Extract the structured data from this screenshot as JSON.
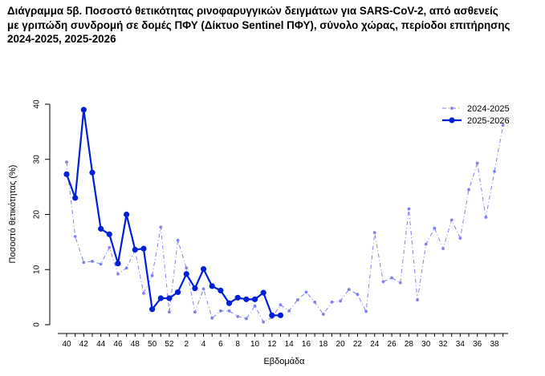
{
  "chart_data": {
    "type": "line",
    "title_lines": [
      "Διάγραμμα 5β. Ποσοστό θετικότητας ρινοφαρυγγικών δειγμάτων για SARS-CoV-2, από ασθενείς",
      "με γριπώδη συνδρομή σε δομές ΠΦΥ (Δίκτυο Sentinel ΠΦΥ), σύνολο χώρας, περίοδοι επιτήρησης",
      "2024-2025, 2025-2026"
    ],
    "xlabel": "Εβδομάδα",
    "ylabel": "Ποσοστό θετικότητας (%)",
    "ylim": [
      0,
      40
    ],
    "yticks": [
      "0",
      "10",
      "20",
      "30",
      "40"
    ],
    "x_tick_labels": [
      "40",
      "42",
      "44",
      "46",
      "48",
      "50",
      "52",
      "2",
      "4",
      "6",
      "8",
      "10",
      "12",
      "14",
      "16",
      "18",
      "20",
      "22",
      "24",
      "26",
      "28",
      "30",
      "32",
      "34",
      "36",
      "38"
    ],
    "legend_position": "top-right",
    "series": [
      {
        "name": "2024-2025",
        "color": "#8080f0",
        "style": "dashed",
        "values": [
          29.5,
          16,
          11.3,
          11.5,
          11,
          14,
          9.2,
          10.3,
          13.5,
          5.7,
          8.9,
          17.7,
          2.3,
          15.3,
          10.3,
          2.3,
          6.5,
          1.2,
          2.5,
          2.5,
          1.5,
          1.1,
          3.4,
          0.5,
          1.3,
          3.6,
          2.5,
          4.5,
          5.9,
          4.1,
          1.9,
          4.1,
          4.3,
          6.4,
          5.5,
          2.4,
          16.7,
          7.8,
          8.5,
          7.6,
          21,
          4.5,
          14.6,
          17.5,
          13.8,
          19,
          15.7,
          24.5,
          29.3,
          19.5,
          27.8,
          36.2
        ]
      },
      {
        "name": "2025-2026",
        "color": "#0020d8",
        "style": "solid",
        "values": [
          27.3,
          23,
          39,
          27.6,
          17.4,
          16.4,
          11.1,
          20,
          13.6,
          13.8,
          2.8,
          4.8,
          4.8,
          5.9,
          9.2,
          6.6,
          10.1,
          7,
          6.2,
          3.9,
          4.9,
          4.6,
          4.6,
          5.8,
          1.7,
          1.7
        ]
      }
    ]
  }
}
